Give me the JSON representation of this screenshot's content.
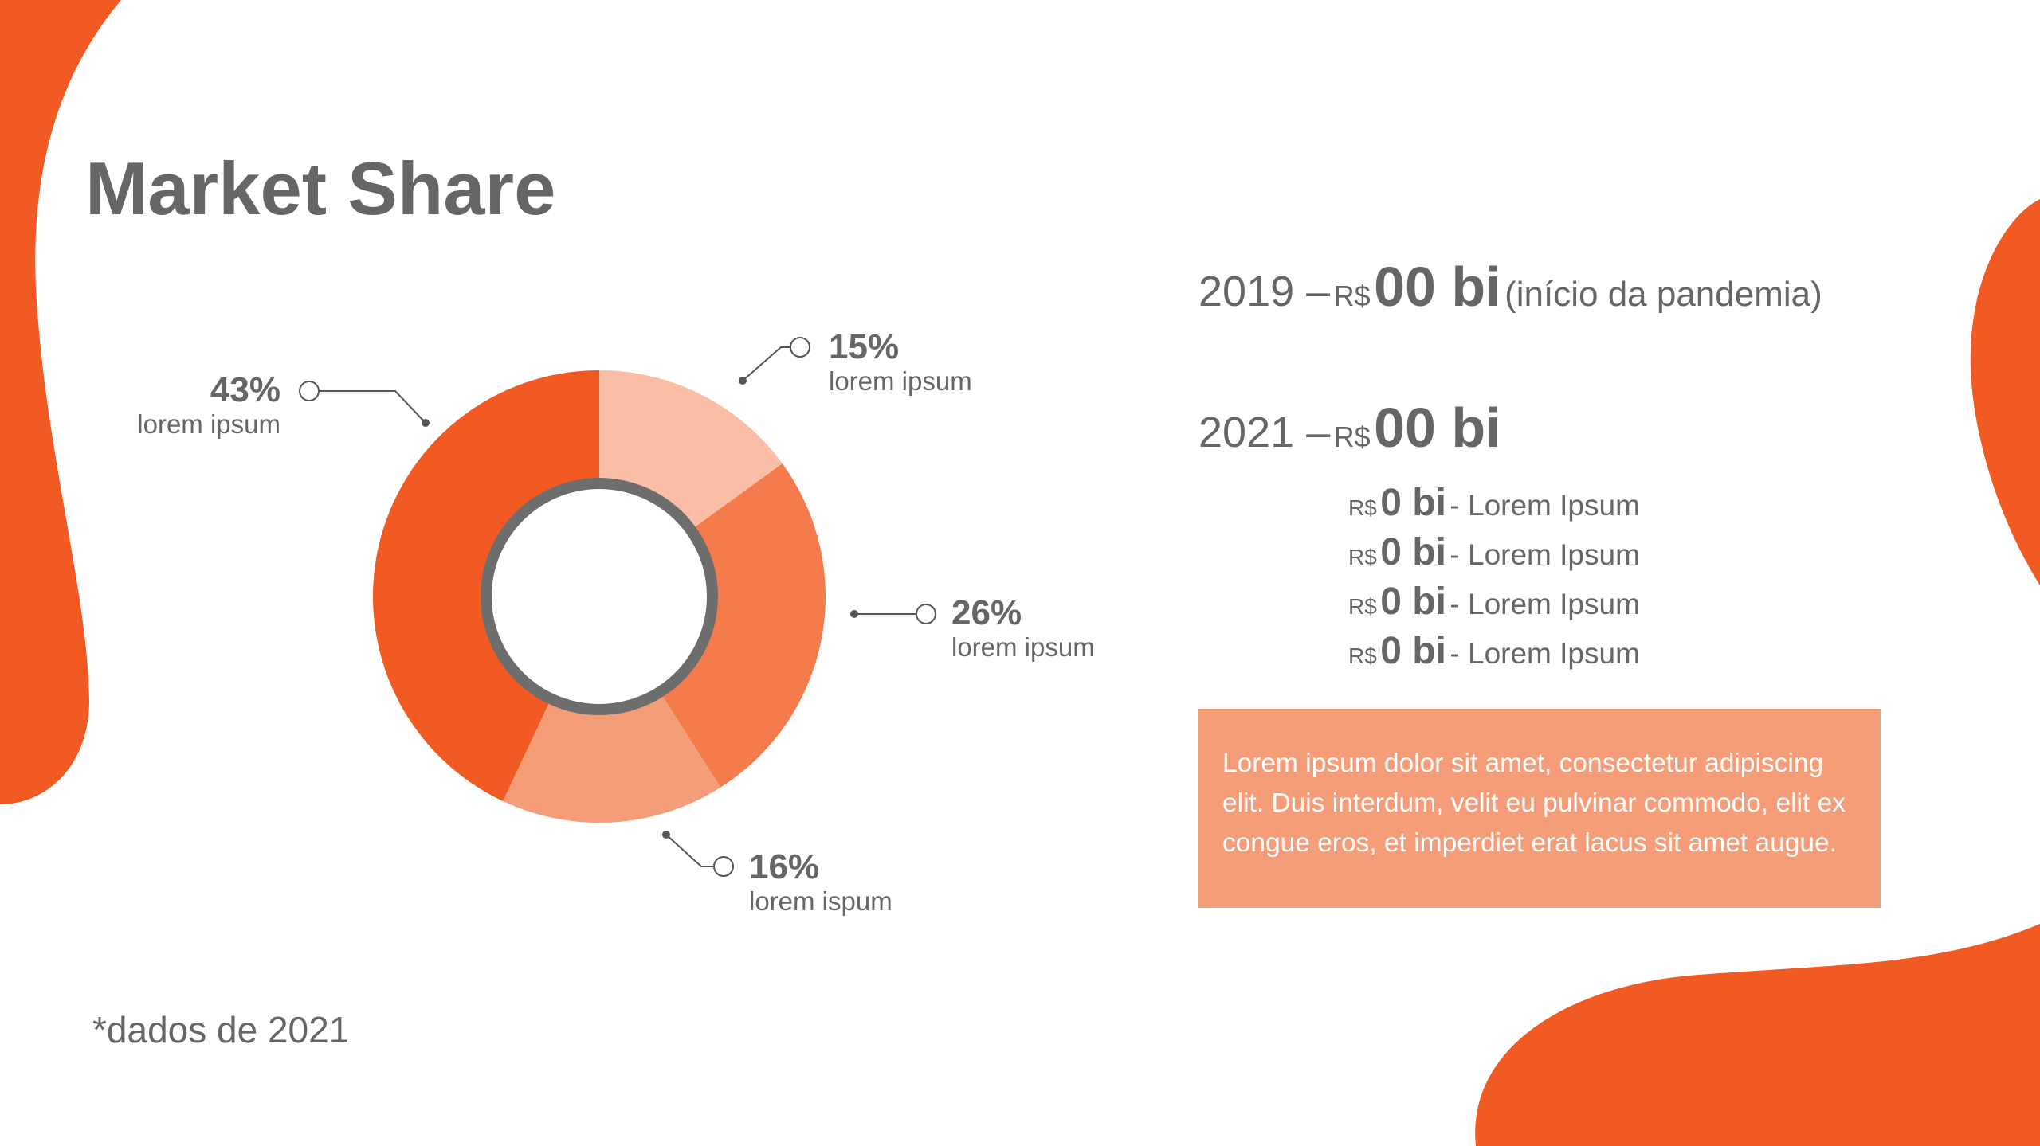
{
  "title": "Market Share",
  "footnote": "*dados de 2021",
  "colors": {
    "accent": "#f15a22",
    "text": "#666666",
    "ring": "#6d6d6d",
    "textbox_bg": "#f59c78"
  },
  "chart_data": {
    "type": "pie",
    "variant": "donut",
    "slices": [
      {
        "value": 15,
        "pct_label": "15%",
        "label": "lorem ipsum",
        "color": "#f9bea5"
      },
      {
        "value": 26,
        "pct_label": "26%",
        "label": "lorem ipsum",
        "color": "#f37b4c"
      },
      {
        "value": 16,
        "pct_label": "16%",
        "label": "lorem ispum",
        "color": "#f59c78"
      },
      {
        "value": 43,
        "pct_label": "43%",
        "label": "lorem ipsum",
        "color": "#f15a22"
      }
    ]
  },
  "stats": {
    "line2019": {
      "year": "2019 –",
      "currency": "R$",
      "amount": "00 bi",
      "note": "(início da pandemia)"
    },
    "line2021": {
      "year": "2021 –",
      "currency": "R$",
      "amount": "00 bi"
    },
    "breakdown": [
      {
        "currency": "R$",
        "amount": "0 bi",
        "text": "- Lorem Ipsum"
      },
      {
        "currency": "R$",
        "amount": "0 bi",
        "text": "- Lorem Ipsum"
      },
      {
        "currency": "R$",
        "amount": "0 bi",
        "text": "- Lorem Ipsum"
      },
      {
        "currency": "R$",
        "amount": "0 bi",
        "text": "- Lorem Ipsum"
      }
    ]
  },
  "textbox": "Lorem ipsum dolor sit amet, consectetur adipiscing elit. Duis interdum, velit eu pulvinar commodo, elit ex congue eros, et imperdiet erat lacus sit amet augue."
}
